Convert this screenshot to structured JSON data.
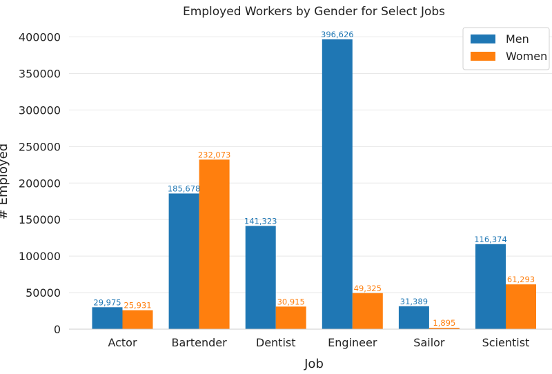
{
  "chart_data": {
    "type": "bar",
    "title": "Employed Workers by Gender for Select Jobs",
    "xlabel": "Job",
    "ylabel": "# Employed",
    "categories": [
      "Actor",
      "Bartender",
      "Dentist",
      "Engineer",
      "Sailor",
      "Scientist"
    ],
    "series": [
      {
        "name": "Men",
        "color": "#1f77b4",
        "values": [
          29975,
          185678,
          141323,
          396626,
          31389,
          116374
        ],
        "labels": [
          "29,975",
          "185,678",
          "141,323",
          "396,626",
          "31,389",
          "116,374"
        ]
      },
      {
        "name": "Women",
        "color": "#ff7f0e",
        "values": [
          25931,
          232073,
          30915,
          49325,
          1895,
          61293
        ],
        "labels": [
          "25,931",
          "232,073",
          "30,915",
          "49,325",
          "1,895",
          "61,293"
        ]
      }
    ],
    "ylim": [
      0,
      420000
    ],
    "yticks": [
      0,
      50000,
      100000,
      150000,
      200000,
      250000,
      300000,
      350000,
      400000
    ],
    "ytick_labels": [
      "0",
      "50000",
      "100000",
      "150000",
      "200000",
      "250000",
      "300000",
      "350000",
      "400000"
    ],
    "grid": "horizontal",
    "legend_position": "top-right"
  }
}
